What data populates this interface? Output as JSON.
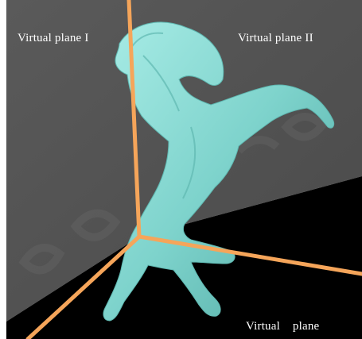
{
  "labels": {
    "plane_1": "Virtual plane I",
    "plane_2": "Virtual plane II",
    "plane_3": "Virtual plane"
  },
  "colors": {
    "page_background": "#ffffff",
    "wall_plane": "#555555",
    "floor_plane": "#000000",
    "axis_lines": "#f5a55a",
    "object": "#7ed3cc",
    "label_text": "#ffffff"
  },
  "figure": {
    "object_icon": "horse-sculpture",
    "axis_count": 3
  }
}
